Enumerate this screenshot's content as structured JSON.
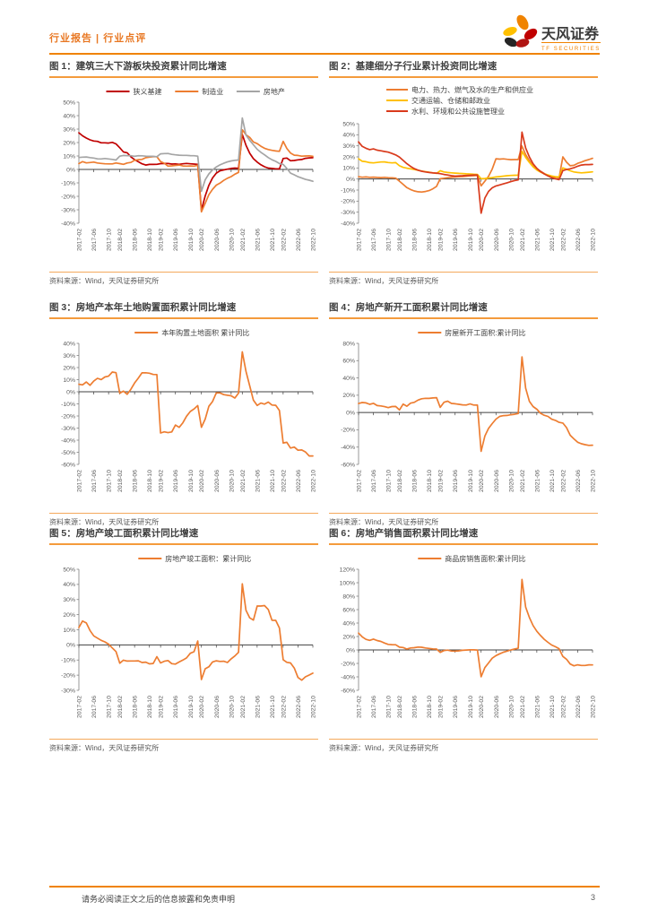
{
  "header": {
    "label": "行业报告 | 行业点评"
  },
  "brand": {
    "name_cn": "天风证券",
    "name_en": "TF SECURITIES"
  },
  "source_note": "资料来源：Wind，天风证券研究所",
  "footer": {
    "disclaimer": "请务必阅读正文之后的信息披露和免责申明",
    "page_number": "3"
  },
  "colors": {
    "accent_orange": "#F08300",
    "dark_red": "#C00000",
    "orange": "#ED7D31",
    "gray": "#A5A5A5",
    "yellow": "#FFC000",
    "red": "#D93A1C"
  },
  "chart_common": {
    "x_months": [
      "2017-02",
      "2017-03",
      "2017-04",
      "2017-05",
      "2017-06",
      "2017-07",
      "2017-08",
      "2017-09",
      "2017-10",
      "2017-11",
      "2017-12",
      "2018-02",
      "2018-03",
      "2018-04",
      "2018-05",
      "2018-06",
      "2018-07",
      "2018-08",
      "2018-09",
      "2018-10",
      "2018-11",
      "2018-12",
      "2019-02",
      "2019-03",
      "2019-04",
      "2019-05",
      "2019-06",
      "2019-07",
      "2019-08",
      "2019-09",
      "2019-10",
      "2019-11",
      "2019-12",
      "2020-02",
      "2020-03",
      "2020-04",
      "2020-05",
      "2020-06",
      "2020-07",
      "2020-08",
      "2020-09",
      "2020-10",
      "2020-11",
      "2020-12",
      "2021-02",
      "2021-03",
      "2021-04",
      "2021-05",
      "2021-06",
      "2021-07",
      "2021-08",
      "2021-09",
      "2021-10",
      "2021-11",
      "2021-12",
      "2022-02",
      "2022-03",
      "2022-04",
      "2022-05",
      "2022-06",
      "2022-07",
      "2022-08",
      "2022-09",
      "2022-10"
    ],
    "tick_suffixes": [
      "-02",
      "-06",
      "-10"
    ]
  },
  "chart_data": [
    {
      "type": "line",
      "title": "图 1：建筑三大下游板块投资累计同比增速",
      "ylim": [
        -40,
        50
      ],
      "ytick_step": 10,
      "legend_layout": "row",
      "series": [
        {
          "name": "狭义基建",
          "color": "#C00000",
          "values": [
            27.3,
            25.0,
            23.3,
            22.0,
            21.1,
            20.9,
            19.8,
            19.8,
            19.6,
            20.1,
            19.0,
            16.1,
            13.0,
            12.4,
            9.4,
            7.3,
            5.7,
            4.2,
            3.3,
            3.7,
            3.7,
            3.8,
            4.3,
            4.4,
            4.4,
            4.0,
            4.1,
            3.8,
            4.2,
            4.5,
            4.2,
            4.0,
            3.8,
            -30.3,
            -19.7,
            -11.8,
            -6.3,
            -2.7,
            -1.0,
            -0.3,
            0.2,
            0.7,
            1.0,
            0.9,
            26.0,
            18.0,
            12.0,
            8.0,
            5.5,
            3.5,
            2.0,
            1.0,
            0.7,
            0.5,
            0.4,
            8.1,
            8.5,
            6.5,
            6.7,
            7.1,
            7.4,
            8.3,
            8.6,
            8.7
          ]
        },
        {
          "name": "制造业",
          "color": "#ED7D31",
          "values": [
            4.3,
            5.8,
            4.9,
            5.1,
            5.5,
            4.8,
            4.5,
            4.2,
            4.1,
            4.1,
            4.8,
            4.3,
            3.8,
            4.8,
            5.2,
            6.8,
            7.3,
            7.5,
            8.7,
            9.1,
            9.5,
            9.5,
            5.9,
            4.6,
            2.5,
            2.7,
            3.0,
            3.3,
            2.6,
            2.5,
            2.6,
            2.5,
            3.1,
            -31.5,
            -25.2,
            -18.8,
            -14.8,
            -11.7,
            -10.2,
            -8.1,
            -6.5,
            -5.3,
            -3.5,
            -2.2,
            29.5,
            25.8,
            23.8,
            20.4,
            19.2,
            17.3,
            15.7,
            14.8,
            14.2,
            13.7,
            13.5,
            20.9,
            15.6,
            12.2,
            10.6,
            10.4,
            9.9,
            10.0,
            10.1,
            9.7
          ]
        },
        {
          "name": "房地产",
          "color": "#A5A5A5",
          "values": [
            8.9,
            9.1,
            9.3,
            8.8,
            8.5,
            7.9,
            7.8,
            8.1,
            7.8,
            7.5,
            7.0,
            9.9,
            10.4,
            10.3,
            10.2,
            9.7,
            10.2,
            10.1,
            9.9,
            9.7,
            9.7,
            9.5,
            11.6,
            11.8,
            11.9,
            11.2,
            10.9,
            10.6,
            10.5,
            10.5,
            10.3,
            10.2,
            9.9,
            -16.3,
            -7.7,
            -3.3,
            -0.3,
            1.9,
            3.4,
            4.6,
            5.6,
            6.3,
            6.8,
            7.0,
            38.3,
            25.6,
            21.6,
            18.3,
            15.0,
            12.7,
            10.9,
            8.8,
            7.2,
            6.0,
            4.4,
            3.7,
            0.7,
            -2.7,
            -4.0,
            -5.4,
            -6.4,
            -7.4,
            -8.0,
            -8.8
          ]
        }
      ]
    },
    {
      "type": "line",
      "title": "图 2：基建细分子行业累计投资同比增速",
      "ylim": [
        -40,
        50
      ],
      "ytick_step": 10,
      "legend_layout": "stacked",
      "series": [
        {
          "name": "电力、热力、燃气及水的生产和供应业",
          "color": "#ED7D31",
          "values": [
            2.1,
            1.6,
            1.8,
            1.5,
            1.7,
            1.4,
            1.3,
            1.5,
            1.2,
            1.0,
            0.8,
            -2.0,
            -4.8,
            -7.8,
            -9.5,
            -10.8,
            -11.5,
            -11.8,
            -11.3,
            -10.5,
            -8.9,
            -6.7,
            0.3,
            0.7,
            1.2,
            1.5,
            1.8,
            2.0,
            2.2,
            2.5,
            2.8,
            3.0,
            3.3,
            -6.2,
            -2.0,
            2.5,
            9.0,
            18.3,
            18.0,
            18.2,
            17.8,
            17.5,
            17.6,
            17.6,
            29.8,
            22.0,
            16.5,
            12.0,
            9.0,
            7.0,
            5.0,
            3.2,
            2.3,
            1.6,
            1.1,
            20.0,
            15.2,
            12.0,
            12.4,
            14.2,
            15.3,
            16.6,
            17.6,
            18.7
          ]
        },
        {
          "name": "交通运输、仓储和邮政业",
          "color": "#FFC000",
          "values": [
            18.3,
            16.0,
            15.6,
            14.8,
            14.6,
            15.0,
            15.4,
            15.5,
            14.9,
            14.6,
            14.8,
            12.0,
            10.5,
            9.8,
            9.2,
            8.6,
            7.9,
            7.2,
            6.6,
            6.1,
            5.6,
            5.1,
            7.5,
            6.4,
            5.9,
            5.6,
            5.3,
            5.1,
            4.9,
            4.7,
            4.5,
            4.3,
            4.1,
            0.2,
            0.5,
            0.9,
            1.3,
            1.8,
            2.2,
            2.6,
            3.0,
            3.2,
            3.4,
            3.5,
            25.0,
            19.5,
            15.0,
            11.0,
            8.2,
            6.2,
            4.7,
            3.6,
            2.7,
            2.1,
            1.8,
            10.0,
            8.8,
            7.4,
            6.4,
            5.9,
            5.6,
            5.8,
            6.1,
            6.5
          ]
        },
        {
          "name": "水利、环境和公共设施管理业",
          "color": "#D93A1C",
          "values": [
            33.5,
            29.5,
            27.8,
            26.6,
            27.2,
            26.1,
            25.5,
            24.9,
            24.3,
            23.1,
            21.8,
            19.8,
            16.8,
            13.8,
            11.4,
            9.4,
            8.0,
            7.0,
            6.4,
            5.9,
            5.5,
            5.3,
            4.8,
            4.1,
            3.6,
            3.0,
            2.6,
            2.8,
            3.0,
            3.2,
            3.4,
            3.6,
            3.6,
            -30.9,
            -17.2,
            -11.2,
            -8.0,
            -6.3,
            -5.4,
            -4.4,
            -3.4,
            -2.4,
            -1.4,
            -0.8,
            42.4,
            28.0,
            19.8,
            13.8,
            9.6,
            6.8,
            4.6,
            2.8,
            1.2,
            0.2,
            -0.6,
            7.6,
            8.6,
            9.2,
            10.2,
            11.6,
            12.6,
            13.0,
            13.0,
            13.2
          ]
        }
      ]
    },
    {
      "type": "line",
      "title": "图 3：房地产本年土地购置面积累计同比增速",
      "ylim": [
        -60,
        40
      ],
      "ytick_step": 10,
      "legend_layout": "row",
      "series": [
        {
          "name": "本年购置土地面积 累计同比",
          "color": "#ED7D31",
          "values": [
            6.2,
            5.7,
            8.1,
            5.3,
            8.8,
            11.1,
            10.1,
            12.2,
            12.9,
            16.3,
            15.8,
            -1.2,
            0.5,
            -2.1,
            2.1,
            7.2,
            11.3,
            15.6,
            15.7,
            15.3,
            14.3,
            14.2,
            -34.1,
            -33.1,
            -33.8,
            -33.2,
            -27.5,
            -29.4,
            -25.6,
            -20.2,
            -16.3,
            -14.2,
            -11.4,
            -29.3,
            -22.6,
            -12.0,
            -8.1,
            -0.9,
            -1.0,
            -2.4,
            -2.9,
            -3.3,
            -5.2,
            -1.1,
            33.0,
            16.9,
            4.8,
            -7.0,
            -11.3,
            -9.3,
            -10.2,
            -8.5,
            -11.0,
            -11.2,
            -15.5,
            -42.3,
            -41.8,
            -46.5,
            -45.7,
            -48.3,
            -48.1,
            -49.7,
            -53.0,
            -53.0
          ]
        }
      ]
    },
    {
      "type": "line",
      "title": "图 4：房地产新开工面积累计同比增速",
      "ylim": [
        -60,
        80
      ],
      "ytick_step": 20,
      "legend_layout": "row",
      "series": [
        {
          "name": "房屋新开工面积:累计同比",
          "color": "#ED7D31",
          "values": [
            10.4,
            11.6,
            11.1,
            9.5,
            10.6,
            8.0,
            7.6,
            6.8,
            5.6,
            6.9,
            7.0,
            2.9,
            9.7,
            7.3,
            10.8,
            11.8,
            14.4,
            15.9,
            16.4,
            16.3,
            16.8,
            17.2,
            6.0,
            11.9,
            13.1,
            10.5,
            10.1,
            9.5,
            8.9,
            8.6,
            10.0,
            8.6,
            8.5,
            -44.9,
            -27.2,
            -18.4,
            -12.8,
            -7.6,
            -4.5,
            -3.6,
            -3.4,
            -2.6,
            -2.0,
            -1.2,
            64.3,
            28.2,
            12.8,
            6.9,
            3.8,
            -0.9,
            -3.2,
            -4.5,
            -7.7,
            -9.1,
            -11.4,
            -12.2,
            -17.5,
            -26.3,
            -30.6,
            -34.4,
            -36.1,
            -37.2,
            -38.0,
            -37.8
          ]
        }
      ]
    },
    {
      "type": "line",
      "title": "图 5：房地产竣工面积累计同比增速",
      "ylim": [
        -30,
        50
      ],
      "ytick_step": 10,
      "legend_layout": "row",
      "series": [
        {
          "name": "房地产竣工面积：累计同比",
          "color": "#ED7D31",
          "values": [
            11.5,
            15.8,
            14.5,
            9.5,
            6.0,
            4.5,
            3.0,
            2.0,
            0.5,
            -2.0,
            -4.4,
            -12.1,
            -10.1,
            -10.7,
            -10.6,
            -10.6,
            -10.5,
            -11.6,
            -11.4,
            -12.5,
            -12.3,
            -7.8,
            -11.9,
            -10.8,
            -10.3,
            -12.4,
            -12.7,
            -11.3,
            -10.0,
            -8.6,
            -5.5,
            -4.5,
            2.6,
            -22.9,
            -15.8,
            -14.5,
            -11.3,
            -10.5,
            -10.9,
            -10.8,
            -11.6,
            -9.2,
            -7.3,
            -4.9,
            40.4,
            22.9,
            17.9,
            16.4,
            25.7,
            25.7,
            26.0,
            23.4,
            16.3,
            16.2,
            11.2,
            -9.8,
            -11.5,
            -11.9,
            -15.3,
            -21.5,
            -23.3,
            -21.1,
            -19.9,
            -18.7
          ]
        }
      ]
    },
    {
      "type": "line",
      "title": "图 6：房地产销售面积累计同比增速",
      "ylim": [
        -60,
        120
      ],
      "ytick_step": 20,
      "legend_layout": "row",
      "series": [
        {
          "name": "商品房销售面积:累计同比",
          "color": "#ED7D31",
          "values": [
            25.1,
            19.5,
            15.7,
            14.3,
            16.1,
            14.0,
            12.7,
            10.3,
            8.2,
            7.9,
            7.7,
            4.1,
            3.6,
            1.3,
            2.9,
            3.3,
            4.2,
            4.0,
            2.9,
            2.2,
            1.4,
            1.3,
            -3.6,
            -0.9,
            -0.3,
            -1.6,
            -1.8,
            -1.3,
            -0.6,
            -0.1,
            0.1,
            0.2,
            -0.1,
            -39.9,
            -26.3,
            -19.3,
            -12.3,
            -8.4,
            -5.8,
            -3.3,
            -1.8,
            0.0,
            1.3,
            2.6,
            104.9,
            63.8,
            48.1,
            36.3,
            27.7,
            21.5,
            15.9,
            11.3,
            7.3,
            4.8,
            1.9,
            -9.6,
            -13.8,
            -20.9,
            -23.6,
            -22.2,
            -23.1,
            -23.0,
            -22.2,
            -22.3
          ]
        }
      ]
    }
  ]
}
